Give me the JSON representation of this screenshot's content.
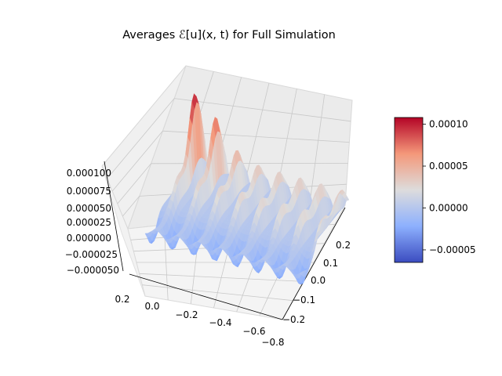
{
  "chart_data": {
    "type": "surface3d",
    "title": "Averages ℰ[u](x, t) for Full Simulation",
    "x_ticks": [
      "0.2",
      "0.0",
      "−0.2",
      "−0.4",
      "−0.6",
      "−0.8"
    ],
    "x_tick_values": [
      0.2,
      0.0,
      -0.2,
      -0.4,
      -0.6,
      -0.8
    ],
    "y_ticks": [
      "−0.2",
      "−0.1",
      "0.0",
      "0.1",
      "0.2"
    ],
    "y_tick_values": [
      -0.2,
      -0.1,
      0.0,
      0.1,
      0.2
    ],
    "z_ticks": [
      "0.000100",
      "0.000075",
      "0.000050",
      "0.000025",
      "0.000000",
      "−0.000025",
      "−0.000050"
    ],
    "z_tick_values": [
      0.0001,
      7.5e-05,
      5e-05,
      2.5e-05,
      0.0,
      -2.5e-05,
      -5e-05
    ],
    "z_range": [
      -6e-05,
      0.00011
    ],
    "colormap": "coolwarm",
    "colorbar": {
      "ticks": [
        "0.00010",
        "0.00005",
        "0.00000",
        "−0.00005"
      ],
      "tick_values": [
        0.0001,
        5e-05,
        0.0,
        -5e-05
      ],
      "range": [
        -6.5e-05,
        0.000108
      ]
    },
    "grid": true
  }
}
